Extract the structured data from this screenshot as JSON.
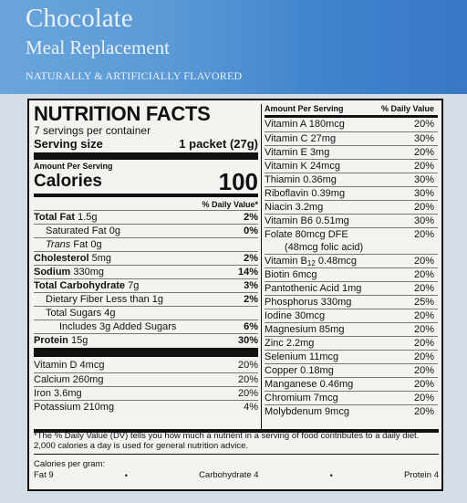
{
  "header": {
    "title": "Chocolate",
    "subtitle": "Meal Replacement",
    "flavor": "NATURALLY & ARTIFICIALLY FLAVORED",
    "color": "#4a8dd2"
  },
  "label": {
    "title": "NUTRITION FACTS",
    "servings": "7 servings per container",
    "serving_size_label": "Serving size",
    "serving_size_value": "1 packet (27g)",
    "amount_per_serving": "Amount Per Serving",
    "calories_label": "Calories",
    "calories_value": "100",
    "dv_header": "% Daily Value*",
    "nutrients": [
      {
        "name": "Total Fat",
        "amount": "1.5g",
        "dv": "2%"
      },
      {
        "name": "Saturated Fat",
        "amount": "0g",
        "dv": "0%"
      },
      {
        "name": "Trans",
        "amount": "Fat 0g",
        "dv": ""
      },
      {
        "name": "Cholesterol",
        "amount": "5mg",
        "dv": "2%"
      },
      {
        "name": "Sodium",
        "amount": "330mg",
        "dv": "14%"
      },
      {
        "name": "Total Carbohydrate",
        "amount": "7g",
        "dv": "3%"
      },
      {
        "name": "Dietary Fiber",
        "amount": "Less than 1g",
        "dv": "2%"
      },
      {
        "name": "Total Sugars",
        "amount": "4g",
        "dv": ""
      },
      {
        "name": "Includes 3g Added Sugars",
        "amount": "",
        "dv": "6%"
      },
      {
        "name": "Protein",
        "amount": "15g",
        "dv": "30%"
      }
    ],
    "minerals_left": [
      {
        "name": "Vitamin D",
        "amount": "4mcg",
        "dv": "20%"
      },
      {
        "name": "Calcium",
        "amount": "260mg",
        "dv": "20%"
      },
      {
        "name": "Iron",
        "amount": "3.6mg",
        "dv": "20%"
      },
      {
        "name": "Potassium",
        "amount": "210mg",
        "dv": "4%"
      }
    ],
    "right_header_amount": "Amount Per Serving",
    "right_header_dv": "% Daily Value",
    "vitamins_right": [
      {
        "name": "Vitamin A",
        "amount": "180mcg",
        "dv": "20%"
      },
      {
        "name": "Vitamin C",
        "amount": "27mg",
        "dv": "30%"
      },
      {
        "name": "Vitamin E",
        "amount": "3mg",
        "dv": "20%"
      },
      {
        "name": "Vitamin K",
        "amount": "24mcg",
        "dv": "20%"
      },
      {
        "name": "Thiamin",
        "amount": "0.36mg",
        "dv": "30%"
      },
      {
        "name": "Riboflavin",
        "amount": "0.39mg",
        "dv": "30%"
      },
      {
        "name": "Niacin",
        "amount": "3.2mg",
        "dv": "20%"
      },
      {
        "name": "Vitamin B6",
        "amount": "0.51mg",
        "dv": "30%"
      },
      {
        "name": "Folate",
        "amount": "80mcg DFE",
        "dv": "20%"
      },
      {
        "name": "(48mcg folic acid)",
        "amount": "",
        "dv": ""
      },
      {
        "name": "Vitamin B12",
        "amount": "0.48mcg",
        "dv": "20%"
      },
      {
        "name": "Biotin",
        "amount": "6mcg",
        "dv": "20%"
      },
      {
        "name": "Pantothenic Acid",
        "amount": "1mg",
        "dv": "20%"
      },
      {
        "name": "Phosphorus",
        "amount": "330mg",
        "dv": "25%"
      },
      {
        "name": "Iodine",
        "amount": "30mcg",
        "dv": "20%"
      },
      {
        "name": "Magnesium",
        "amount": "85mg",
        "dv": "20%"
      },
      {
        "name": "Zinc",
        "amount": "2.2mg",
        "dv": "20%"
      },
      {
        "name": "Selenium",
        "amount": "11mcg",
        "dv": "20%"
      },
      {
        "name": "Copper",
        "amount": "0.18mg",
        "dv": "20%"
      },
      {
        "name": "Manganese",
        "amount": "0.46mg",
        "dv": "20%"
      },
      {
        "name": "Chromium",
        "amount": "7mcg",
        "dv": "20%"
      },
      {
        "name": "Molybdenum",
        "amount": "9mcg",
        "dv": "20%"
      }
    ],
    "footnote": "*The % Daily Value (DV) tells you how much a nutrient in a serving of food contributes to a daily diet. 2,000 calories a day is used for general nutrition advice.",
    "calories_per_gram_label": "Calories per gram:",
    "fat_per_gram": "Fat 9",
    "carb_per_gram": "Carbohydrate 4",
    "protein_per_gram": "Protein 4"
  }
}
